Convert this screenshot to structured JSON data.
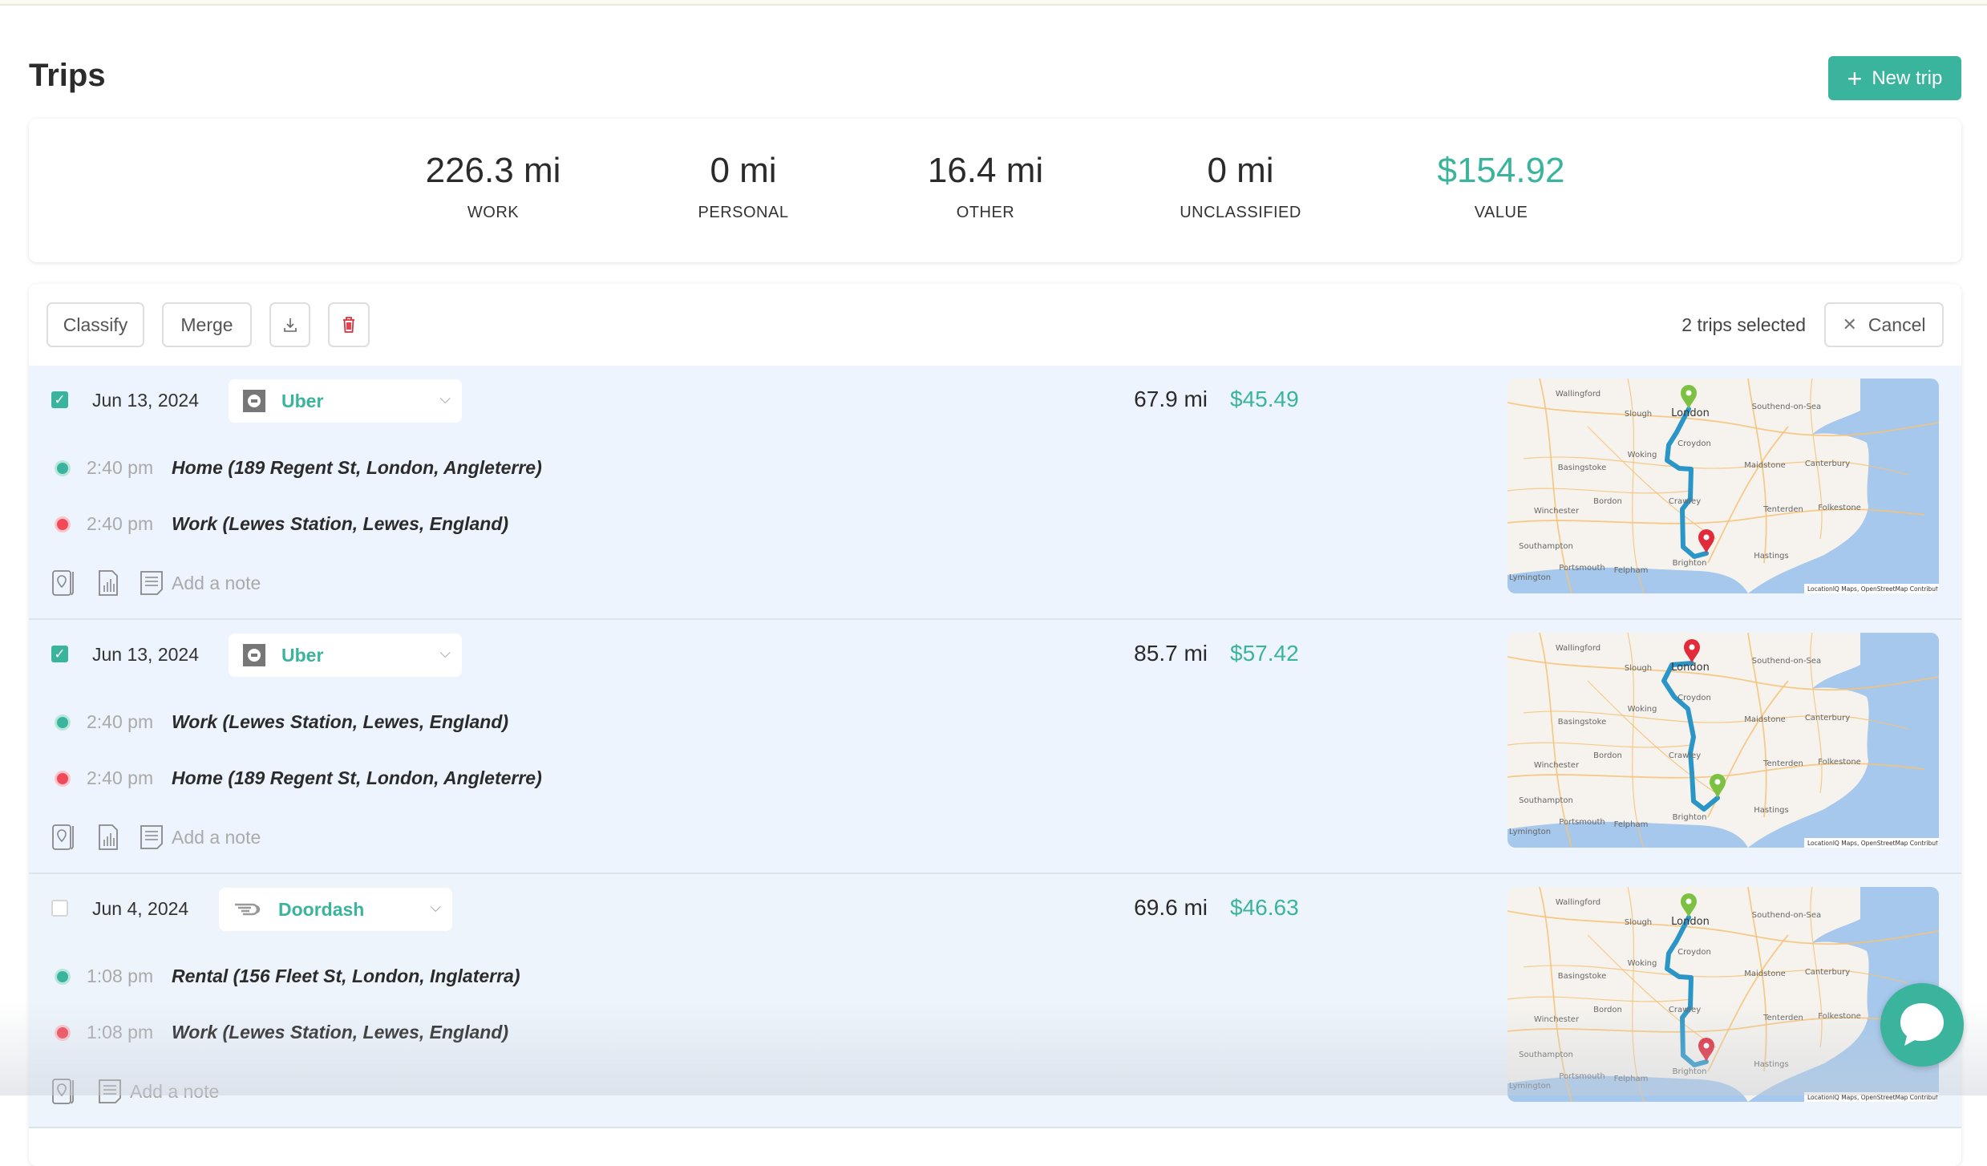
{
  "header": {
    "title": "Trips",
    "new_trip_label": "New trip"
  },
  "stats": [
    {
      "value": "226.3 mi",
      "label": "WORK"
    },
    {
      "value": "0 mi",
      "label": "PERSONAL"
    },
    {
      "value": "16.4 mi",
      "label": "OTHER"
    },
    {
      "value": "0 mi",
      "label": "UNCLASSIFIED"
    },
    {
      "value": "$154.92",
      "label": "VALUE"
    }
  ],
  "toolbar": {
    "classify": "Classify",
    "merge": "Merge",
    "selected_text": "2 trips selected",
    "cancel": "Cancel"
  },
  "trips": [
    {
      "checked": true,
      "date": "Jun 13, 2024",
      "platform": "Uber",
      "platform_icon": "uber-icon",
      "distance": "67.9 mi",
      "value": "$45.49",
      "start": {
        "time": "2:40 pm",
        "address": "Home (189 Regent St, London, Angleterre)"
      },
      "end": {
        "time": "2:40 pm",
        "address": "Work (Lewes Station, Lewes, England)"
      },
      "note_placeholder": "Add a note"
    },
    {
      "checked": true,
      "date": "Jun 13, 2024",
      "platform": "Uber",
      "platform_icon": "uber-icon",
      "distance": "85.7 mi",
      "value": "$57.42",
      "start": {
        "time": "2:40 pm",
        "address": "Work (Lewes Station, Lewes, England)"
      },
      "end": {
        "time": "2:40 pm",
        "address": "Home (189 Regent St, London, Angleterre)"
      },
      "note_placeholder": "Add a note"
    },
    {
      "checked": false,
      "date": "Jun 4, 2024",
      "platform": "Doordash",
      "platform_icon": "doordash-icon",
      "distance": "69.6 mi",
      "value": "$46.63",
      "start": {
        "time": "1:08 pm",
        "address": "Rental (156 Fleet St, London, Inglaterra)"
      },
      "end": {
        "time": "1:08 pm",
        "address": "Work (Lewes Station, Lewes, England)"
      },
      "note_placeholder": "Add a note"
    }
  ],
  "map": {
    "labels": [
      "Wallingford",
      "Slough",
      "London",
      "Southend-on-Sea",
      "Croydon",
      "Woking",
      "Basingstoke",
      "Maidstone",
      "Canterbury",
      "Bordon",
      "Winchester",
      "Crawley",
      "Tenterden",
      "Folkestone",
      "Southampton",
      "Hastings",
      "Portsmouth",
      "Felpham",
      "Brighton",
      "Lymington"
    ],
    "attribution": "LocationIQ Maps, OpenStreetMap Contributors"
  },
  "colors": {
    "accent": "#3bb49d",
    "start": "#3bb49d",
    "end": "#f04a5a",
    "route": "#2a96c8",
    "selected_row": "#edf4fd",
    "delete": "#e0303f"
  }
}
